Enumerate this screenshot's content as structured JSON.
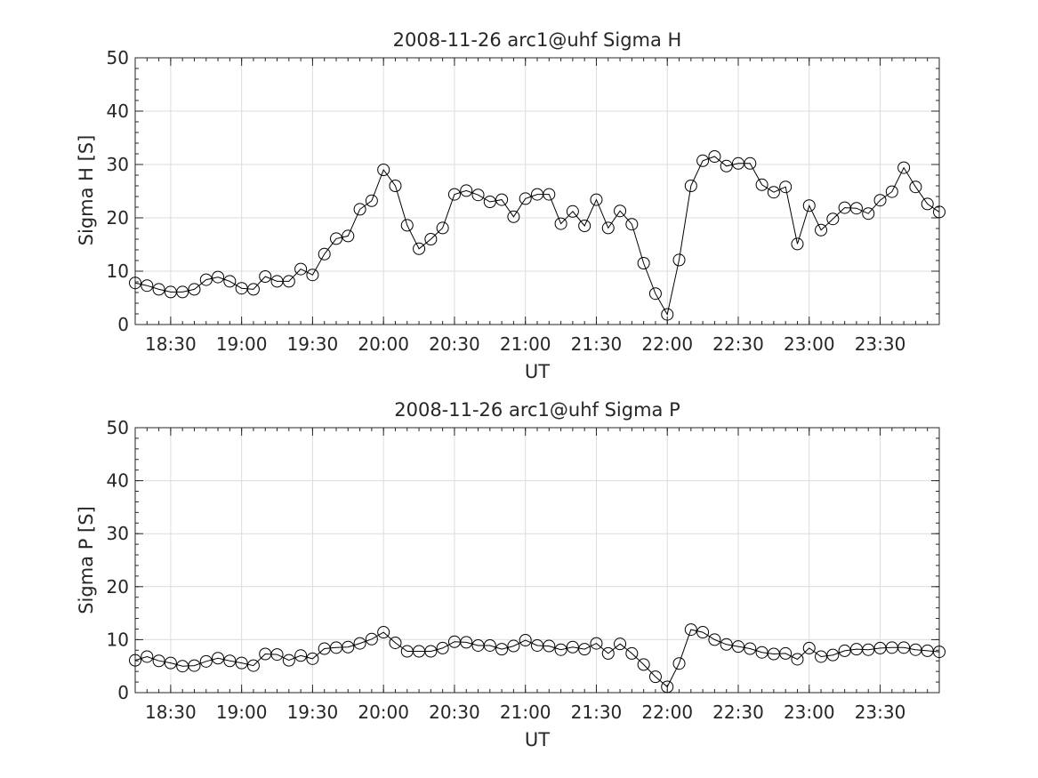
{
  "chart_data": [
    {
      "type": "line",
      "title": "2008-11-26  arc1@uhf Sigma H",
      "xlabel": "UT",
      "ylabel": "Sigma H [S]",
      "xlim": [
        "18:15",
        "23:55"
      ],
      "ylim": [
        0,
        50
      ],
      "x_ticks": [
        "18:30",
        "19:00",
        "19:30",
        "20:00",
        "20:30",
        "21:00",
        "21:30",
        "22:00",
        "22:30",
        "23:00",
        "23:30"
      ],
      "y_ticks": [
        "0",
        "10",
        "20",
        "30",
        "40",
        "50"
      ],
      "grid": true,
      "marker": "open-circle",
      "line_color": "#000000",
      "x": [
        "18:15",
        "18:20",
        "18:25",
        "18:30",
        "18:35",
        "18:40",
        "18:45",
        "18:50",
        "18:55",
        "19:00",
        "19:05",
        "19:10",
        "19:15",
        "19:20",
        "19:25",
        "19:30",
        "19:35",
        "19:40",
        "19:45",
        "19:50",
        "19:55",
        "20:00",
        "20:05",
        "20:10",
        "20:15",
        "20:20",
        "20:25",
        "20:30",
        "20:35",
        "20:40",
        "20:45",
        "20:50",
        "20:55",
        "21:00",
        "21:05",
        "21:10",
        "21:15",
        "21:20",
        "21:25",
        "21:30",
        "21:35",
        "21:40",
        "21:45",
        "21:50",
        "21:55",
        "22:00",
        "22:05",
        "22:10",
        "22:15",
        "22:20",
        "22:25",
        "22:30",
        "22:35",
        "22:40",
        "22:45",
        "22:50",
        "22:55",
        "23:00",
        "23:05",
        "23:10",
        "23:15",
        "23:20",
        "23:25",
        "23:30",
        "23:35",
        "23:40",
        "23:45",
        "23:50",
        "23:55"
      ],
      "values": [
        7.8,
        7.3,
        6.6,
        6.1,
        6.1,
        6.6,
        8.4,
        8.9,
        8.1,
        6.8,
        6.6,
        9.0,
        8.1,
        8.1,
        10.4,
        9.3,
        13.2,
        16.1,
        16.6,
        21.6,
        23.2,
        29.0,
        26.0,
        18.6,
        14.2,
        16.0,
        18.1,
        24.4,
        25.1,
        24.3,
        23.0,
        23.4,
        20.2,
        23.6,
        24.4,
        24.4,
        18.9,
        21.2,
        18.5,
        23.4,
        18.1,
        21.3,
        18.8,
        11.5,
        5.8,
        1.9,
        12.1,
        26.0,
        30.7,
        31.5,
        29.7,
        30.2,
        30.2,
        26.2,
        24.8,
        25.8,
        15.1,
        22.3,
        17.7,
        19.8,
        21.9,
        21.8,
        20.8,
        23.3,
        24.9,
        29.4,
        25.8,
        22.6,
        21.1
      ]
    },
    {
      "type": "line",
      "title": "2008-11-26  arc1@uhf Sigma P",
      "xlabel": "UT",
      "ylabel": "Sigma P [S]",
      "xlim": [
        "18:15",
        "23:55"
      ],
      "ylim": [
        0,
        50
      ],
      "x_ticks": [
        "18:30",
        "19:00",
        "19:30",
        "20:00",
        "20:30",
        "21:00",
        "21:30",
        "22:00",
        "22:30",
        "23:00",
        "23:30"
      ],
      "y_ticks": [
        "0",
        "10",
        "20",
        "30",
        "40",
        "50"
      ],
      "grid": true,
      "marker": "open-circle",
      "line_color": "#000000",
      "x": [
        "18:15",
        "18:20",
        "18:25",
        "18:30",
        "18:35",
        "18:40",
        "18:45",
        "18:50",
        "18:55",
        "19:00",
        "19:05",
        "19:10",
        "19:15",
        "19:20",
        "19:25",
        "19:30",
        "19:35",
        "19:40",
        "19:45",
        "19:50",
        "19:55",
        "20:00",
        "20:05",
        "20:10",
        "20:15",
        "20:20",
        "20:25",
        "20:30",
        "20:35",
        "20:40",
        "20:45",
        "20:50",
        "20:55",
        "21:00",
        "21:05",
        "21:10",
        "21:15",
        "21:20",
        "21:25",
        "21:30",
        "21:35",
        "21:40",
        "21:45",
        "21:50",
        "21:55",
        "22:00",
        "22:05",
        "22:10",
        "22:15",
        "22:20",
        "22:25",
        "22:30",
        "22:35",
        "22:40",
        "22:45",
        "22:50",
        "22:55",
        "23:00",
        "23:05",
        "23:10",
        "23:15",
        "23:20",
        "23:25",
        "23:30",
        "23:35",
        "23:40",
        "23:45",
        "23:50",
        "23:55"
      ],
      "values": [
        6.1,
        6.8,
        6.0,
        5.6,
        5.0,
        5.1,
        5.9,
        6.5,
        6.0,
        5.6,
        5.1,
        7.3,
        7.2,
        6.1,
        7.0,
        6.4,
        8.3,
        8.5,
        8.6,
        9.3,
        10.1,
        11.4,
        9.4,
        7.8,
        7.8,
        7.8,
        8.4,
        9.6,
        9.5,
        8.9,
        8.9,
        8.2,
        8.8,
        9.9,
        8.9,
        8.8,
        8.1,
        8.6,
        8.2,
        9.3,
        7.4,
        9.2,
        7.4,
        5.3,
        3.0,
        1.1,
        5.5,
        11.9,
        11.4,
        10.0,
        9.1,
        8.7,
        8.3,
        7.6,
        7.3,
        7.4,
        6.3,
        8.4,
        6.8,
        7.1,
        7.9,
        8.2,
        8.1,
        8.4,
        8.5,
        8.5,
        8.1,
        7.9,
        7.7
      ]
    }
  ]
}
